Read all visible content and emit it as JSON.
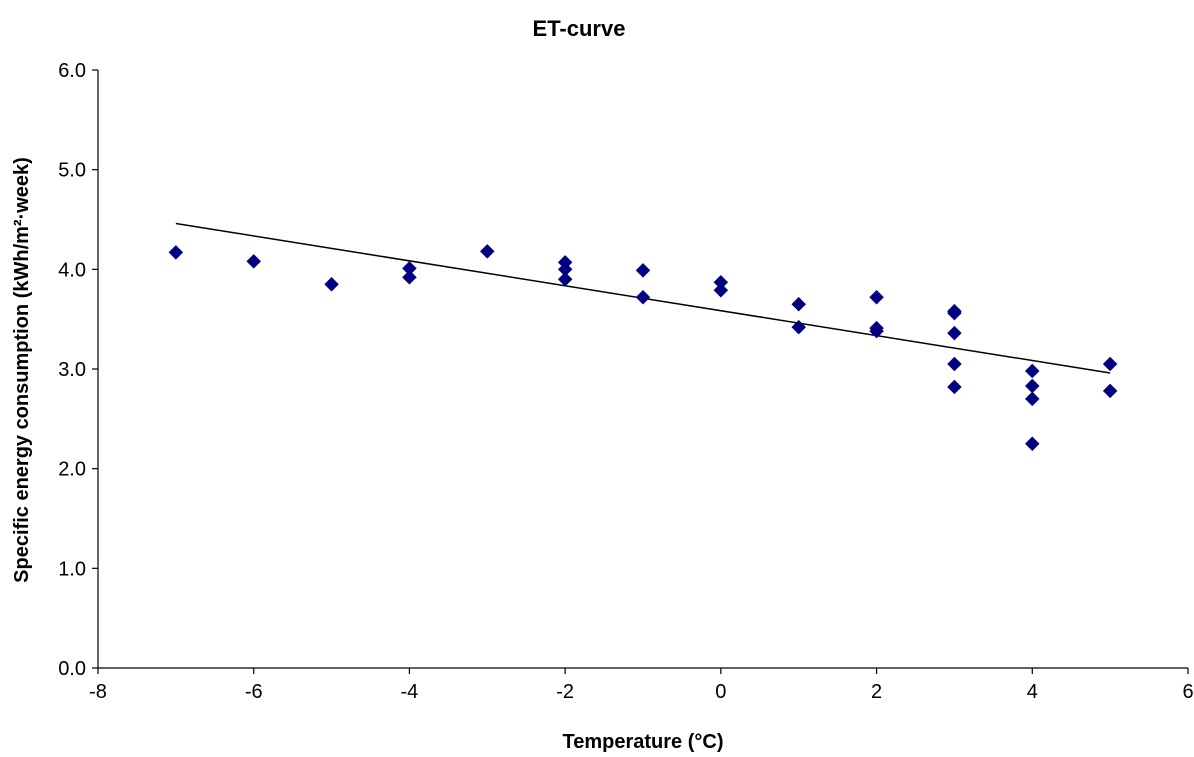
{
  "chart_data": {
    "type": "scatter",
    "title": "ET-curve",
    "xlabel": "Temperature (°C)",
    "ylabel": "Specific energy consumption (kWh/m²·week)",
    "xlim": [
      -8,
      6
    ],
    "ylim": [
      0,
      6
    ],
    "x_ticks": [
      -8,
      -6,
      -4,
      -2,
      0,
      2,
      4,
      6
    ],
    "x_tick_labels": [
      "-8",
      "-6",
      "-4",
      "-2",
      "0",
      "2",
      "4",
      "6"
    ],
    "y_ticks": [
      0,
      1,
      2,
      3,
      4,
      5,
      6
    ],
    "y_tick_labels": [
      "0.0",
      "1.0",
      "2.0",
      "3.0",
      "4.0",
      "5.0",
      "6.0"
    ],
    "grid": false,
    "legend": "none",
    "series": [
      {
        "marker": "diamond",
        "color": "#000080",
        "points": [
          [
            -7,
            4.17
          ],
          [
            -6,
            4.08
          ],
          [
            -5,
            3.85
          ],
          [
            -4,
            4.01
          ],
          [
            -4,
            3.92
          ],
          [
            -3,
            4.18
          ],
          [
            -2,
            4.07
          ],
          [
            -2,
            4.0
          ],
          [
            -2,
            3.9
          ],
          [
            -1,
            3.99
          ],
          [
            -1,
            3.72
          ],
          [
            0,
            3.87
          ],
          [
            0,
            3.79
          ],
          [
            1,
            3.65
          ],
          [
            1,
            3.42
          ],
          [
            2,
            3.72
          ],
          [
            2,
            3.41
          ],
          [
            2,
            3.38
          ],
          [
            3,
            3.58
          ],
          [
            3,
            3.56
          ],
          [
            3,
            3.36
          ],
          [
            3,
            3.05
          ],
          [
            3,
            2.82
          ],
          [
            4,
            2.98
          ],
          [
            4,
            2.83
          ],
          [
            4,
            2.7
          ],
          [
            4,
            2.25
          ],
          [
            5,
            3.05
          ],
          [
            5,
            2.78
          ]
        ]
      }
    ],
    "trendline": {
      "type": "linear",
      "color": "#000000",
      "points": [
        [
          -7,
          4.46
        ],
        [
          5,
          2.96
        ]
      ]
    }
  }
}
